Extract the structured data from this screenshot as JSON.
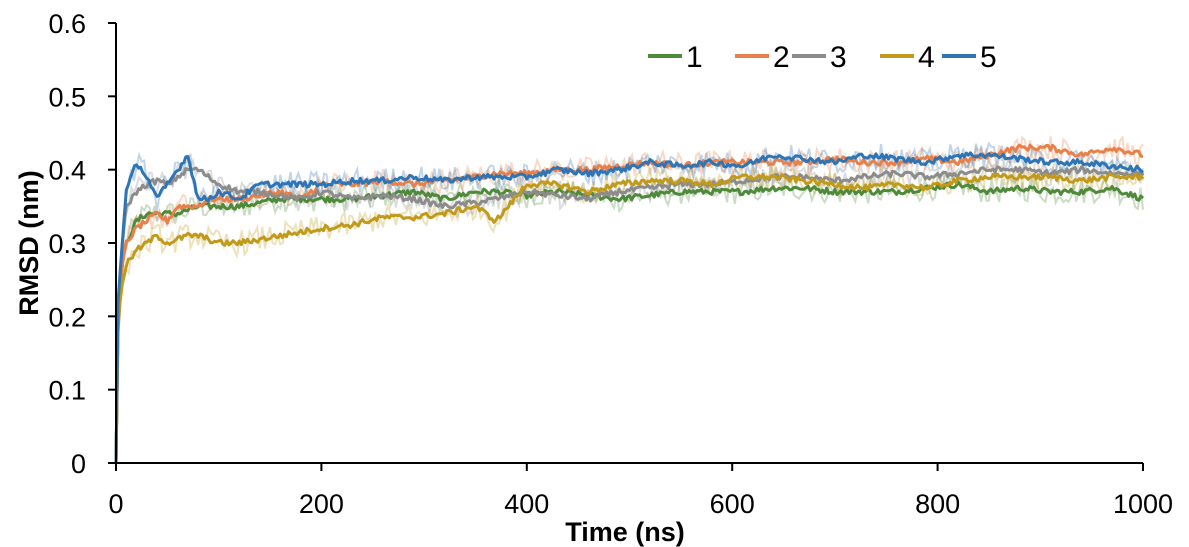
{
  "chart_data": {
    "type": "line",
    "title": "",
    "xlabel": "Time (ns)",
    "ylabel": "RMSD (nm)",
    "xlim": [
      0,
      1000
    ],
    "ylim": [
      0,
      0.6
    ],
    "xticks": [
      0,
      200,
      400,
      600,
      800,
      1000
    ],
    "xtick_labels": [
      "0",
      "200",
      "400",
      "600",
      "800",
      "1000"
    ],
    "yticks": [
      0,
      0.1,
      0.2,
      0.3,
      0.4,
      0.5,
      0.6
    ],
    "ytick_labels": [
      "0",
      "0.1",
      "0.2",
      "0.3",
      "0.4",
      "0.5",
      "0.6"
    ],
    "grid": false,
    "legend_position": "top-right",
    "x": [
      0,
      2,
      5,
      10,
      20,
      30,
      40,
      50,
      60,
      70,
      80,
      90,
      100,
      120,
      140,
      160,
      180,
      200,
      230,
      260,
      290,
      320,
      350,
      370,
      400,
      430,
      460,
      490,
      520,
      550,
      580,
      610,
      640,
      670,
      700,
      730,
      760,
      790,
      820,
      850,
      880,
      910,
      940,
      970,
      1000
    ],
    "series": [
      {
        "name": "1",
        "color": "#4e8a3a",
        "values": [
          0,
          0.2,
          0.26,
          0.3,
          0.33,
          0.34,
          0.34,
          0.34,
          0.34,
          0.345,
          0.35,
          0.35,
          0.35,
          0.35,
          0.355,
          0.36,
          0.36,
          0.36,
          0.36,
          0.365,
          0.37,
          0.36,
          0.37,
          0.37,
          0.365,
          0.37,
          0.365,
          0.36,
          0.365,
          0.37,
          0.37,
          0.37,
          0.375,
          0.375,
          0.37,
          0.37,
          0.37,
          0.375,
          0.38,
          0.37,
          0.375,
          0.37,
          0.37,
          0.375,
          0.36
        ]
      },
      {
        "name": "2",
        "color": "#e8804a",
        "values": [
          0,
          0.2,
          0.26,
          0.3,
          0.32,
          0.33,
          0.34,
          0.33,
          0.35,
          0.35,
          0.35,
          0.36,
          0.36,
          0.36,
          0.365,
          0.37,
          0.36,
          0.38,
          0.38,
          0.385,
          0.38,
          0.385,
          0.39,
          0.395,
          0.395,
          0.4,
          0.4,
          0.405,
          0.41,
          0.405,
          0.41,
          0.41,
          0.41,
          0.41,
          0.415,
          0.41,
          0.41,
          0.415,
          0.41,
          0.42,
          0.43,
          0.43,
          0.42,
          0.43,
          0.42
        ]
      },
      {
        "name": "3",
        "color": "#8c8c8c",
        "values": [
          0,
          0.2,
          0.28,
          0.35,
          0.37,
          0.38,
          0.385,
          0.38,
          0.39,
          0.4,
          0.4,
          0.39,
          0.38,
          0.37,
          0.37,
          0.365,
          0.36,
          0.37,
          0.36,
          0.365,
          0.36,
          0.35,
          0.355,
          0.36,
          0.37,
          0.365,
          0.36,
          0.37,
          0.375,
          0.38,
          0.38,
          0.385,
          0.39,
          0.39,
          0.385,
          0.39,
          0.395,
          0.39,
          0.395,
          0.4,
          0.4,
          0.395,
          0.4,
          0.395,
          0.395
        ]
      },
      {
        "name": "4",
        "color": "#c19a1c",
        "values": [
          0,
          0.18,
          0.24,
          0.27,
          0.29,
          0.3,
          0.31,
          0.3,
          0.305,
          0.31,
          0.31,
          0.305,
          0.3,
          0.3,
          0.305,
          0.31,
          0.315,
          0.32,
          0.325,
          0.335,
          0.335,
          0.34,
          0.35,
          0.33,
          0.38,
          0.38,
          0.37,
          0.38,
          0.385,
          0.385,
          0.38,
          0.39,
          0.39,
          0.385,
          0.38,
          0.375,
          0.38,
          0.375,
          0.385,
          0.39,
          0.39,
          0.39,
          0.385,
          0.39,
          0.39
        ]
      },
      {
        "name": "5",
        "color": "#2e75b6",
        "values": [
          0,
          0.22,
          0.28,
          0.37,
          0.41,
          0.39,
          0.36,
          0.38,
          0.4,
          0.42,
          0.36,
          0.36,
          0.37,
          0.36,
          0.38,
          0.38,
          0.38,
          0.38,
          0.385,
          0.385,
          0.39,
          0.385,
          0.39,
          0.39,
          0.39,
          0.4,
          0.395,
          0.4,
          0.41,
          0.405,
          0.41,
          0.405,
          0.42,
          0.415,
          0.41,
          0.42,
          0.415,
          0.41,
          0.42,
          0.42,
          0.415,
          0.41,
          0.41,
          0.405,
          0.4
        ]
      }
    ]
  }
}
